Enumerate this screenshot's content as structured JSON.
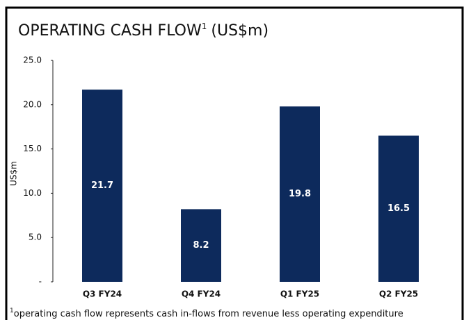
{
  "chart_data": {
    "type": "bar",
    "title": "OPERATING CASH FLOW",
    "title_note": "1",
    "title_unit": "(US$m)",
    "y_label": "US$m",
    "categories": [
      "Q3 FY24",
      "Q4 FY24",
      "Q1 FY25",
      "Q2 FY25"
    ],
    "values": [
      21.7,
      8.2,
      19.8,
      16.5
    ],
    "color": "#0d2a5c",
    "ylim": [
      0,
      25
    ],
    "yticks": [
      {
        "value": 0,
        "label": "-"
      },
      {
        "value": 5,
        "label": "5.0"
      },
      {
        "value": 10,
        "label": "10.0"
      },
      {
        "value": 15,
        "label": "15.0"
      },
      {
        "value": 20,
        "label": "20.0"
      },
      {
        "value": 25,
        "label": "25.0"
      }
    ],
    "footnote_mark": "1",
    "footnote": "operating cash flow represents cash in-flows from revenue less operating expenditure"
  }
}
